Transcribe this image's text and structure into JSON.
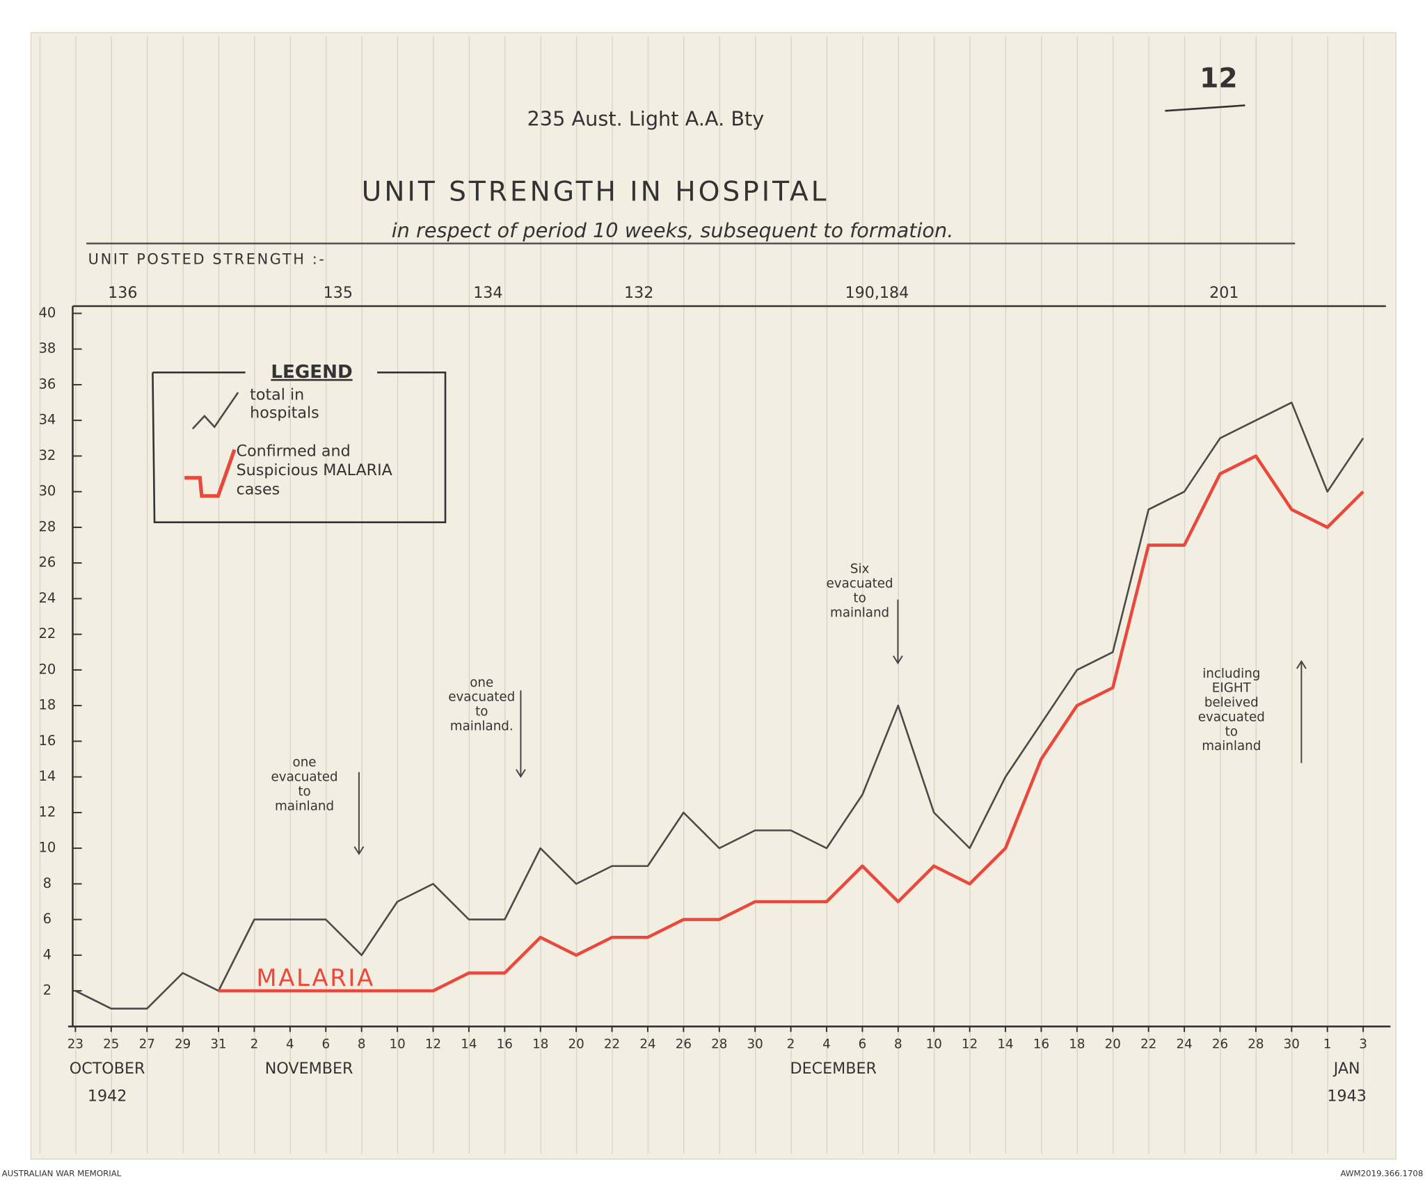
{
  "document": {
    "unit": "235 Aust. Light A.A. Bty",
    "page_number": "12",
    "footer_left": "AUSTRALIAN WAR MEMORIAL",
    "footer_right": "AWM2019.366.1708"
  },
  "chart_data": {
    "type": "line",
    "title": "UNIT STRENGTH IN HOSPITAL",
    "subtitle": "in respect of period 10 weeks, subsequent to formation.",
    "posted_strength_label": "UNIT POSTED STRENGTH :-",
    "posted_strength": [
      "136",
      "135",
      "134",
      "132",
      "190,184",
      "201"
    ],
    "legend_title": "LEGEND",
    "categories": [
      "23",
      "25",
      "27",
      "29",
      "31",
      "2",
      "4",
      "6",
      "8",
      "10",
      "12",
      "14",
      "16",
      "18",
      "20",
      "22",
      "24",
      "26",
      "28",
      "30",
      "2",
      "4",
      "6",
      "8",
      "10",
      "12",
      "14",
      "16",
      "18",
      "20",
      "22",
      "24",
      "26",
      "28",
      "30",
      "1",
      "3"
    ],
    "month_labels": [
      {
        "month": "OCTOBER",
        "year": "1942"
      },
      {
        "month": "NOVEMBER"
      },
      {
        "month": "DECEMBER"
      },
      {
        "month": "JAN",
        "year": "1943"
      }
    ],
    "series": [
      {
        "name": "total in hospitals",
        "color": "#4a4a4a",
        "values": [
          2,
          1,
          1,
          3,
          2,
          6,
          6,
          6,
          4,
          7,
          8,
          6,
          6,
          10,
          8,
          9,
          9,
          12,
          10,
          11,
          11,
          10,
          13,
          18,
          12,
          10,
          14,
          17,
          20,
          21,
          29,
          30,
          33,
          34,
          35,
          30,
          33
        ]
      },
      {
        "name": "Confirmed and Suspicious MALARIA cases",
        "color": "#e8493c",
        "values": [
          null,
          null,
          null,
          null,
          2,
          2,
          2,
          2,
          2,
          2,
          2,
          3,
          3,
          5,
          4,
          5,
          5,
          6,
          6,
          7,
          7,
          7,
          9,
          7,
          9,
          8,
          10,
          15,
          18,
          19,
          27,
          27,
          31,
          32,
          29,
          28,
          30
        ]
      }
    ],
    "series_label": "MALARIA",
    "ylim": [
      0,
      40
    ],
    "yticks": [
      2,
      4,
      6,
      8,
      10,
      12,
      14,
      16,
      18,
      20,
      22,
      24,
      26,
      28,
      30,
      32,
      34,
      36,
      38,
      40
    ],
    "annotations": [
      {
        "lines": [
          "one",
          "evacuated",
          "to",
          "mainland"
        ]
      },
      {
        "lines": [
          "one",
          "evacuated",
          "to",
          "mainland."
        ]
      },
      {
        "lines": [
          "Six",
          "evacuated",
          "to",
          "mainland"
        ]
      },
      {
        "lines": [
          "including",
          "EIGHT",
          "beleived",
          "evacuated",
          "to",
          "mainland"
        ]
      }
    ]
  }
}
